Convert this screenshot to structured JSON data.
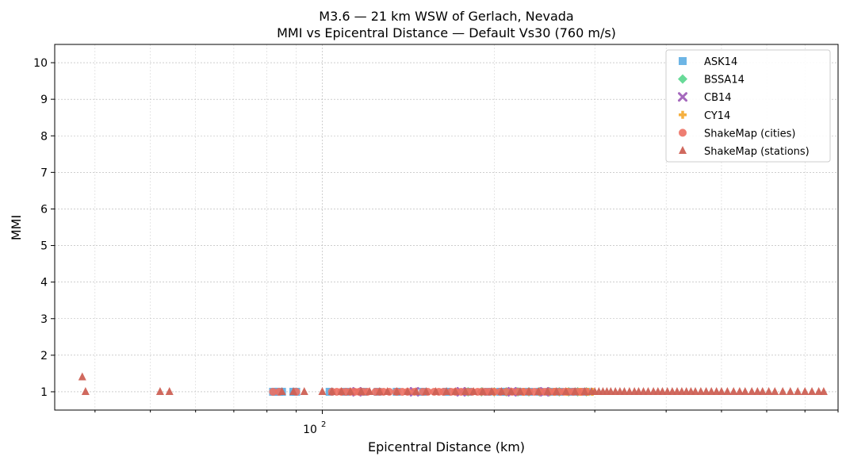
{
  "chart_data": {
    "type": "scatter",
    "title": "M3.6 — 21 km WSW of Gerlach, Nevada",
    "subtitle": "MMI vs Epicentral Distance — Default Vs30 (760 m/s)",
    "xlabel": "Epicentral Distance (km)",
    "ylabel": "MMI",
    "xscale": "log",
    "xlim": [
      34,
      800
    ],
    "ylim": [
      0.5,
      10.5
    ],
    "x_tick_label": "10",
    "x_tick_exponent": "2",
    "y_ticks": [
      1,
      2,
      3,
      4,
      5,
      6,
      7,
      8,
      9,
      10
    ],
    "grid": true,
    "legend_position": "upper-right",
    "series": [
      {
        "name": "ASK14",
        "marker": "square",
        "color": "#5dade2",
        "x": [
          82,
          83,
          84,
          85,
          89,
          90,
          103,
          110,
          118,
          125,
          135,
          150,
          165,
          180,
          195,
          205,
          210,
          220,
          230,
          240,
          250,
          260,
          275,
          290
        ],
        "y": [
          1,
          1,
          1,
          1,
          1,
          1,
          1,
          1,
          1,
          1,
          1,
          1,
          1,
          1,
          1,
          1,
          1,
          1,
          1,
          1,
          1,
          1,
          1,
          1
        ]
      },
      {
        "name": "BSSA14",
        "marker": "diamond",
        "color": "#58d68d",
        "x": [
          180,
          190,
          200,
          210,
          220,
          230,
          240,
          250,
          260,
          270,
          280,
          290
        ],
        "y": [
          1,
          1,
          1,
          1,
          1,
          1,
          1,
          1,
          1,
          1,
          1,
          1
        ]
      },
      {
        "name": "CB14",
        "marker": "x",
        "color": "#a569bd",
        "x": [
          115,
          145,
          175,
          215,
          245
        ],
        "y": [
          1,
          1,
          1,
          1,
          1
        ]
      },
      {
        "name": "CY14",
        "marker": "plus",
        "color": "#f5b041",
        "x": [
          200,
          225,
          255,
          268,
          283,
          292,
          297
        ],
        "y": [
          1,
          1,
          1,
          1,
          1,
          1,
          1
        ]
      },
      {
        "name": "ShakeMap (cities)",
        "marker": "circle",
        "color": "#ec7063",
        "x": [
          82,
          84,
          90,
          104,
          106,
          108,
          110,
          112,
          114,
          116,
          118,
          120,
          124,
          126,
          128,
          131,
          135,
          138,
          141,
          145,
          150,
          153,
          157,
          160,
          163,
          168,
          171,
          175,
          180,
          183,
          187,
          190,
          193,
          196,
          200,
          205,
          210,
          215,
          220,
          225,
          230,
          235,
          240,
          245,
          250,
          255,
          260,
          265,
          270,
          275,
          280,
          285,
          290
        ],
        "y": [
          1,
          1,
          1,
          1,
          1,
          1,
          1,
          1,
          1,
          1,
          1,
          1,
          1,
          1,
          1,
          1,
          1,
          1,
          1,
          1,
          1,
          1,
          1,
          1,
          1,
          1,
          1,
          1,
          1,
          1,
          1,
          1,
          1,
          1,
          1,
          1,
          1,
          1,
          1,
          1,
          1,
          1,
          1,
          1,
          1,
          1,
          1,
          1,
          1,
          1,
          1,
          1,
          1
        ]
      },
      {
        "name": "ShakeMap (stations)",
        "marker": "triangle",
        "color": "#cd6155",
        "x": [
          38,
          38.5,
          52,
          54,
          85,
          89,
          93,
          100,
          104,
          108,
          112,
          117,
          121,
          126,
          130,
          135,
          141,
          146,
          152,
          158,
          165,
          171,
          178,
          184,
          191,
          198,
          206,
          214,
          222,
          230,
          239,
          248,
          257,
          267,
          277,
          288,
          296,
          300,
          305,
          310,
          315,
          320,
          326,
          332,
          338,
          345,
          352,
          358,
          365,
          372,
          380,
          387,
          394,
          402,
          410,
          418,
          426,
          434,
          442,
          450,
          460,
          470,
          480,
          490,
          500,
          512,
          525,
          538,
          550,
          565,
          578,
          590,
          605,
          620,
          640,
          660,
          680,
          700,
          720,
          740,
          755
        ],
        "y": [
          1.4,
          1,
          1,
          1,
          1,
          1,
          1,
          1,
          1,
          1,
          1,
          1,
          1,
          1,
          1,
          1,
          1,
          1,
          1,
          1,
          1,
          1,
          1,
          1,
          1,
          1,
          1,
          1,
          1,
          1,
          1,
          1,
          1,
          1,
          1,
          1,
          1,
          1,
          1,
          1,
          1,
          1,
          1,
          1,
          1,
          1,
          1,
          1,
          1,
          1,
          1,
          1,
          1,
          1,
          1,
          1,
          1,
          1,
          1,
          1,
          1,
          1,
          1,
          1,
          1,
          1,
          1,
          1,
          1,
          1,
          1,
          1,
          1,
          1,
          1,
          1,
          1,
          1,
          1,
          1,
          1
        ]
      }
    ]
  }
}
